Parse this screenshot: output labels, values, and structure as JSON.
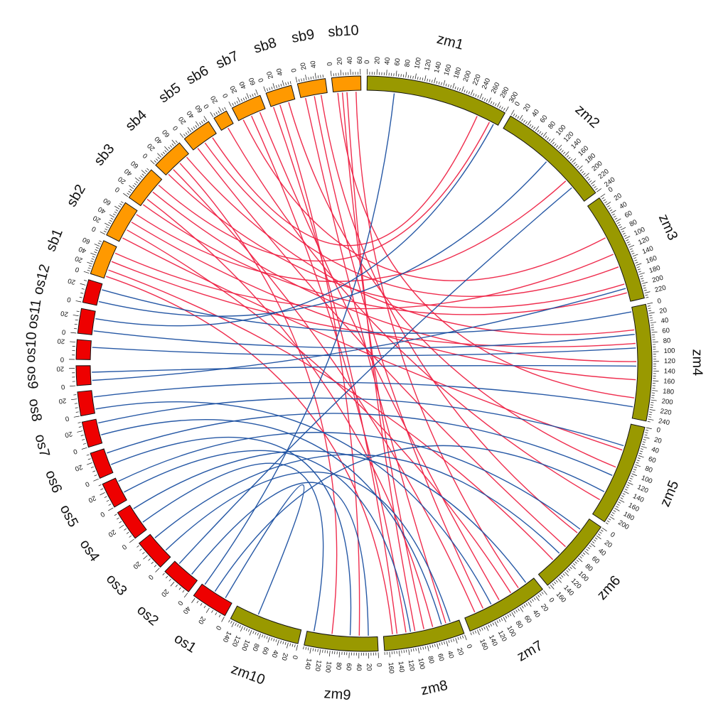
{
  "colors": {
    "zm": "#999900",
    "sb": "#ff9900",
    "os": "#ee0000",
    "link_sb": "#ee2244",
    "link_os": "#1a4fa0"
  },
  "chromosomes": [
    {
      "name": "zm1",
      "group": "zm",
      "length": 300,
      "label_step": 20,
      "tick_step": 5
    },
    {
      "name": "zm2",
      "group": "zm",
      "length": 240,
      "label_step": 20,
      "tick_step": 5
    },
    {
      "name": "zm3",
      "group": "zm",
      "length": 230,
      "label_step": 20,
      "tick_step": 5
    },
    {
      "name": "zm4",
      "group": "zm",
      "length": 245,
      "label_step": 20,
      "tick_step": 5
    },
    {
      "name": "zm5",
      "group": "zm",
      "length": 215,
      "label_step": 20,
      "tick_step": 5
    },
    {
      "name": "zm6",
      "group": "zm",
      "length": 165,
      "label_step": 20,
      "tick_step": 5
    },
    {
      "name": "zm7",
      "group": "zm",
      "length": 175,
      "label_step": 20,
      "tick_step": 5
    },
    {
      "name": "zm8",
      "group": "zm",
      "length": 170,
      "label_step": 20,
      "tick_step": 5
    },
    {
      "name": "zm9",
      "group": "zm",
      "length": 155,
      "label_step": 20,
      "tick_step": 5
    },
    {
      "name": "zm10",
      "group": "zm",
      "length": 150,
      "label_step": 20,
      "tick_step": 5
    },
    {
      "name": "os1",
      "group": "os",
      "length": 43,
      "label_step": 20,
      "tick_step": 5
    },
    {
      "name": "os2",
      "group": "os",
      "length": 36,
      "label_step": 20,
      "tick_step": 5
    },
    {
      "name": "os3",
      "group": "os",
      "length": 37,
      "label_step": 20,
      "tick_step": 5
    },
    {
      "name": "os4",
      "group": "os",
      "length": 36,
      "label_step": 20,
      "tick_step": 5
    },
    {
      "name": "os5",
      "group": "os",
      "length": 30,
      "label_step": 20,
      "tick_step": 5
    },
    {
      "name": "os6",
      "group": "os",
      "length": 31,
      "label_step": 20,
      "tick_step": 5
    },
    {
      "name": "os7",
      "group": "os",
      "length": 30,
      "label_step": 20,
      "tick_step": 5
    },
    {
      "name": "os8",
      "group": "os",
      "length": 28,
      "label_step": 20,
      "tick_step": 5
    },
    {
      "name": "os9",
      "group": "os",
      "length": 23,
      "label_step": 20,
      "tick_step": 5
    },
    {
      "name": "os10",
      "group": "os",
      "length": 23,
      "label_step": 20,
      "tick_step": 5
    },
    {
      "name": "os11",
      "group": "os",
      "length": 29,
      "label_step": 20,
      "tick_step": 5
    },
    {
      "name": "os12",
      "group": "os",
      "length": 27,
      "label_step": 20,
      "tick_step": 5
    },
    {
      "name": "sb1",
      "group": "sb",
      "length": 74,
      "label_step": 20,
      "tick_step": 5
    },
    {
      "name": "sb2",
      "group": "sb",
      "length": 78,
      "label_step": 20,
      "tick_step": 5
    },
    {
      "name": "sb3",
      "group": "sb",
      "length": 74,
      "label_step": 20,
      "tick_step": 5
    },
    {
      "name": "sb4",
      "group": "sb",
      "length": 68,
      "label_step": 20,
      "tick_step": 5
    },
    {
      "name": "sb5",
      "group": "sb",
      "length": 62,
      "label_step": 20,
      "tick_step": 5
    },
    {
      "name": "sb6",
      "group": "sb",
      "length": 30,
      "label_step": 20,
      "tick_step": 5
    },
    {
      "name": "sb7",
      "group": "sb",
      "length": 64,
      "label_step": 20,
      "tick_step": 5
    },
    {
      "name": "sb8",
      "group": "sb",
      "length": 55,
      "label_step": 20,
      "tick_step": 5
    },
    {
      "name": "sb9",
      "group": "sb",
      "length": 59,
      "label_step": 20,
      "tick_step": 5
    },
    {
      "name": "sb10",
      "group": "sb",
      "length": 61,
      "label_step": 20,
      "tick_step": 5
    }
  ],
  "links": [
    {
      "from": [
        "sb10",
        50
      ],
      "to": [
        "zm7",
        40
      ],
      "group": "sb"
    },
    {
      "from": [
        "sb10",
        30
      ],
      "to": [
        "zm8",
        100
      ],
      "group": "sb"
    },
    {
      "from": [
        "sb10",
        20
      ],
      "to": [
        "zm8",
        80
      ],
      "group": "sb"
    },
    {
      "from": [
        "sb10",
        10
      ],
      "to": [
        "zm4",
        200
      ],
      "group": "sb"
    },
    {
      "from": [
        "sb9",
        45
      ],
      "to": [
        "zm6",
        40
      ],
      "group": "sb"
    },
    {
      "from": [
        "sb9",
        30
      ],
      "to": [
        "zm7",
        130
      ],
      "group": "sb"
    },
    {
      "from": [
        "sb9",
        10
      ],
      "to": [
        "zm8",
        30
      ],
      "group": "sb"
    },
    {
      "from": [
        "sb8",
        40
      ],
      "to": [
        "zm5",
        100
      ],
      "group": "sb"
    },
    {
      "from": [
        "sb8",
        20
      ],
      "to": [
        "zm9",
        40
      ],
      "group": "sb"
    },
    {
      "from": [
        "sb8",
        5
      ],
      "to": [
        "zm8",
        140
      ],
      "group": "sb"
    },
    {
      "from": [
        "sb7",
        50
      ],
      "to": [
        "zm7",
        90
      ],
      "group": "sb"
    },
    {
      "from": [
        "sb7",
        30
      ],
      "to": [
        "zm8",
        120
      ],
      "group": "sb"
    },
    {
      "from": [
        "sb7",
        10
      ],
      "to": [
        "zm3",
        80
      ],
      "group": "sb"
    },
    {
      "from": [
        "sb6",
        15
      ],
      "to": [
        "zm5",
        180
      ],
      "group": "sb"
    },
    {
      "from": [
        "sb5",
        50
      ],
      "to": [
        "zm1",
        250
      ],
      "group": "sb"
    },
    {
      "from": [
        "sb5",
        30
      ],
      "to": [
        "zm3",
        150
      ],
      "group": "sb"
    },
    {
      "from": [
        "sb5",
        10
      ],
      "to": [
        "zm6",
        80
      ],
      "group": "sb"
    },
    {
      "from": [
        "sb4",
        60
      ],
      "to": [
        "zm4",
        50
      ],
      "group": "sb"
    },
    {
      "from": [
        "sb4",
        40
      ],
      "to": [
        "zm9",
        100
      ],
      "group": "sb"
    },
    {
      "from": [
        "sb4",
        20
      ],
      "to": [
        "zm7",
        150
      ],
      "group": "sb"
    },
    {
      "from": [
        "sb4",
        5
      ],
      "to": [
        "zm3",
        190
      ],
      "group": "sb"
    },
    {
      "from": [
        "sb3",
        60
      ],
      "to": [
        "zm1",
        280
      ],
      "group": "sb"
    },
    {
      "from": [
        "sb3",
        40
      ],
      "to": [
        "zm4",
        120
      ],
      "group": "sb"
    },
    {
      "from": [
        "sb3",
        20
      ],
      "to": [
        "zm8",
        60
      ],
      "group": "sb"
    },
    {
      "from": [
        "sb3",
        5
      ],
      "to": [
        "zm3",
        210
      ],
      "group": "sb"
    },
    {
      "from": [
        "sb2",
        70
      ],
      "to": [
        "zm2",
        180
      ],
      "group": "sb"
    },
    {
      "from": [
        "sb2",
        50
      ],
      "to": [
        "zm4",
        160
      ],
      "group": "sb"
    },
    {
      "from": [
        "sb2",
        30
      ],
      "to": [
        "zm7",
        60
      ],
      "group": "sb"
    },
    {
      "from": [
        "sb2",
        10
      ],
      "to": [
        "zm5",
        60
      ],
      "group": "sb"
    },
    {
      "from": [
        "sb1",
        60
      ],
      "to": [
        "zm3",
        120
      ],
      "group": "sb"
    },
    {
      "from": [
        "sb1",
        40
      ],
      "to": [
        "zm4",
        80
      ],
      "group": "sb"
    },
    {
      "from": [
        "sb1",
        20
      ],
      "to": [
        "zm6",
        120
      ],
      "group": "sb"
    },
    {
      "from": [
        "sb1",
        5
      ],
      "to": [
        "zm8",
        150
      ],
      "group": "sb"
    },
    {
      "from": [
        "os12",
        20
      ],
      "to": [
        "zm4",
        10
      ],
      "group": "os"
    },
    {
      "from": [
        "os12",
        5
      ],
      "to": [
        "zm2",
        120
      ],
      "group": "os"
    },
    {
      "from": [
        "os11",
        20
      ],
      "to": [
        "zm1",
        290
      ],
      "group": "os"
    },
    {
      "from": [
        "os11",
        5
      ],
      "to": [
        "zm4",
        60
      ],
      "group": "os"
    },
    {
      "from": [
        "os10",
        15
      ],
      "to": [
        "zm4",
        90
      ],
      "group": "os"
    },
    {
      "from": [
        "os9",
        15
      ],
      "to": [
        "zm4",
        130
      ],
      "group": "os"
    },
    {
      "from": [
        "os9",
        5
      ],
      "to": [
        "zm3",
        200
      ],
      "group": "os"
    },
    {
      "from": [
        "os8",
        20
      ],
      "to": [
        "zm4",
        220
      ],
      "group": "os"
    },
    {
      "from": [
        "os8",
        5
      ],
      "to": [
        "zm7",
        110
      ],
      "group": "os"
    },
    {
      "from": [
        "os7",
        25
      ],
      "to": [
        "zm5",
        50
      ],
      "group": "os"
    },
    {
      "from": [
        "os7",
        10
      ],
      "to": [
        "zm8",
        40
      ],
      "group": "os"
    },
    {
      "from": [
        "os6",
        25
      ],
      "to": [
        "zm5",
        120
      ],
      "group": "os"
    },
    {
      "from": [
        "os6",
        10
      ],
      "to": [
        "zm9",
        60
      ],
      "group": "os"
    },
    {
      "from": [
        "os5",
        25
      ],
      "to": [
        "zm6",
        30
      ],
      "group": "os"
    },
    {
      "from": [
        "os5",
        10
      ],
      "to": [
        "zm8",
        110
      ],
      "group": "os"
    },
    {
      "from": [
        "os4",
        30
      ],
      "to": [
        "zm7",
        20
      ],
      "group": "os"
    },
    {
      "from": [
        "os4",
        10
      ],
      "to": [
        "zm9",
        140
      ],
      "group": "os"
    },
    {
      "from": [
        "os3",
        30
      ],
      "to": [
        "zm6",
        100
      ],
      "group": "os"
    },
    {
      "from": [
        "os3",
        10
      ],
      "to": [
        "zm8",
        20
      ],
      "group": "os"
    },
    {
      "from": [
        "os2",
        30
      ],
      "to": [
        "zm2",
        200
      ],
      "group": "os"
    },
    {
      "from": [
        "os2",
        10
      ],
      "to": [
        "zm9",
        20
      ],
      "group": "os"
    },
    {
      "from": [
        "os1",
        40
      ],
      "to": [
        "zm1",
        60
      ],
      "group": "os"
    },
    {
      "from": [
        "os1",
        25
      ],
      "to": [
        "zm5",
        160
      ],
      "group": "os"
    },
    {
      "from": [
        "os1",
        10
      ],
      "to": [
        "zm10",
        100
      ],
      "group": "os"
    }
  ]
}
